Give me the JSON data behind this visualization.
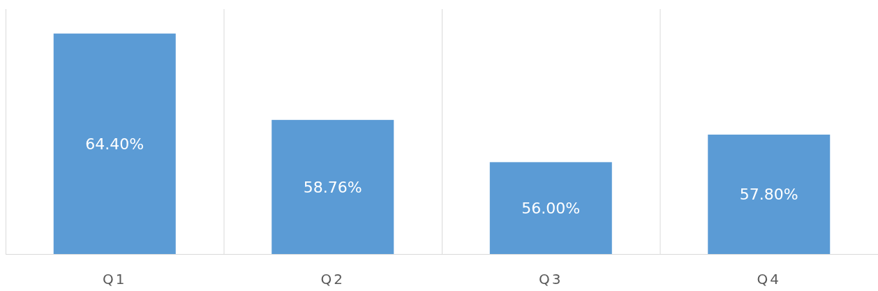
{
  "chart_data": {
    "type": "bar",
    "categories": [
      "Q1",
      "Q2",
      "Q3",
      "Q4"
    ],
    "values": [
      64.4,
      58.76,
      56.0,
      57.8
    ],
    "value_labels": [
      "64.40%",
      "58.76%",
      "56.00%",
      "57.80%"
    ],
    "color": "#5b9bd5",
    "ylim": [
      50,
      66
    ],
    "tick_labels": "x",
    "grid": "x"
  }
}
